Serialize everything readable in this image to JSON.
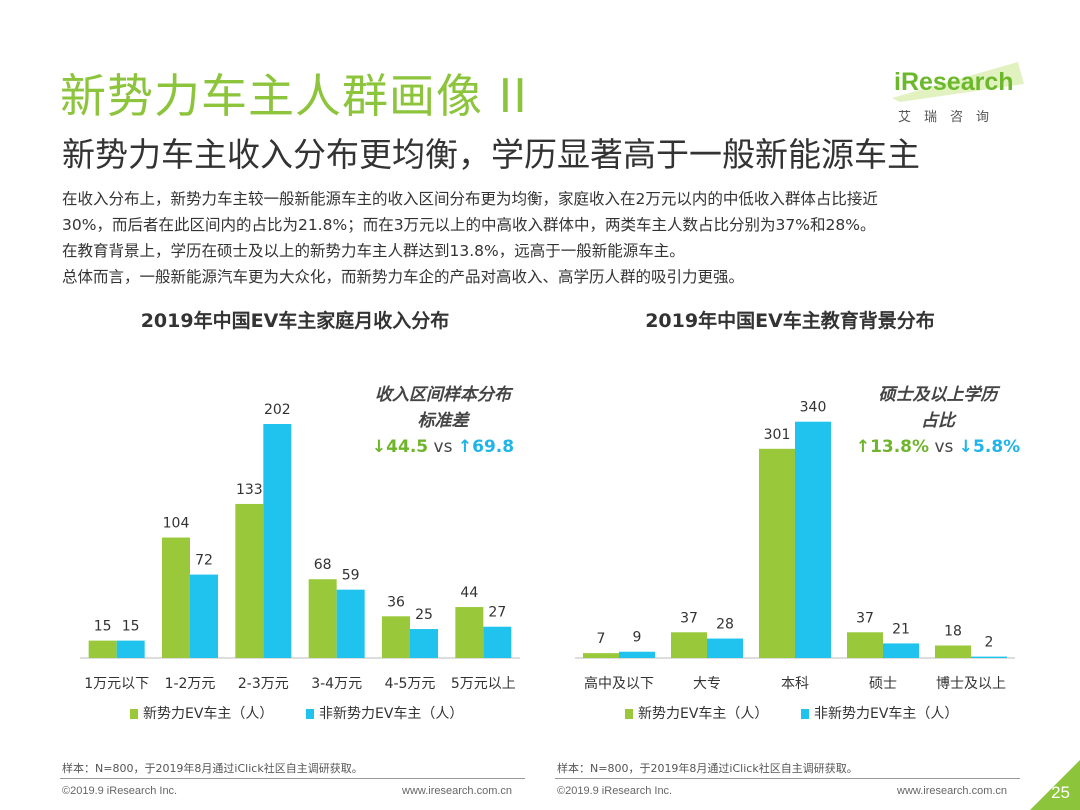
{
  "header": {
    "title": "新势力车主人群画像 II",
    "subtitle": "新势力车主收入分布更均衡，学历显著高于一般新能源车主"
  },
  "logo": {
    "brand": "iResearch",
    "sub": "艾瑞咨询"
  },
  "paragraphs": [
    "在收入分布上，新势力车主较一般新能源车主的收入区间分布更为均衡，家庭收入在2万元以内的中低收入群体占比接近",
    "30%，而后者在此区间内的占比为21.8%；而在3万元以上的中高收入群体中，两类车主人数占比分别为37%和28%。",
    "在教育背景上，学历在硕士及以上的新势力车主人群达到13.8%，远高于一般新能源车主。",
    "总体而言，一般新能源汽车更为大众化，而新势力车企的产品对高收入、高学历人群的吸引力更强。"
  ],
  "chart_data": [
    {
      "type": "bar",
      "title": "2019年中国EV车主家庭月收入分布",
      "categories": [
        "1万元以下",
        "1-2万元",
        "2-3万元",
        "3-4万元",
        "4-5万元",
        "5万元以上"
      ],
      "series": [
        {
          "name": "新势力EV车主（人）",
          "values": [
            15,
            104,
            133,
            68,
            36,
            44
          ],
          "color": "#99c93a"
        },
        {
          "name": "非新势力EV车主（人）",
          "values": [
            15,
            72,
            202,
            59,
            25,
            27
          ],
          "color": "#1fc3ee"
        }
      ],
      "ylim": [
        0,
        240
      ],
      "annotation": {
        "line1": "收入区间样本分布",
        "line2": "标准差",
        "v1": "44.5",
        "vs": "vs",
        "v2": "69.8",
        "arrow1": "↓",
        "arrow2": "↑"
      },
      "legend": "bottom",
      "footnote": "样本：N=800，于2019年8月通过iClick社区自主调研获取。"
    },
    {
      "type": "bar",
      "title": "2019年中国EV车主教育背景分布",
      "categories": [
        "高中及以下",
        "大专",
        "本科",
        "硕士",
        "博士及以上"
      ],
      "series": [
        {
          "name": "新势力EV车主（人）",
          "values": [
            7,
            37,
            301,
            37,
            18
          ],
          "color": "#99c93a"
        },
        {
          "name": "非新势力EV车主（人）",
          "values": [
            9,
            28,
            340,
            21,
            2
          ],
          "color": "#1fc3ee"
        }
      ],
      "ylim": [
        0,
        400
      ],
      "annotation": {
        "line1": "硕士及以上学历",
        "line2": "占比",
        "v1": "13.8%",
        "vs": "vs",
        "v2": "5.8%",
        "arrow1": "↑",
        "arrow2": "↓"
      },
      "legend": "bottom",
      "footnote": "样本：N=800，于2019年8月通过iClick社区自主调研获取。"
    }
  ],
  "footer": {
    "copyright": "©2019.9  iResearch Inc.",
    "url": "www.iresearch.com.cn",
    "page": "25"
  },
  "colors": {
    "accent": "#8cc43c",
    "green_bar": "#99c93a",
    "blue_bar": "#1fc3ee",
    "arrow_green": "#6fb52c",
    "arrow_blue": "#1fb5e8"
  }
}
